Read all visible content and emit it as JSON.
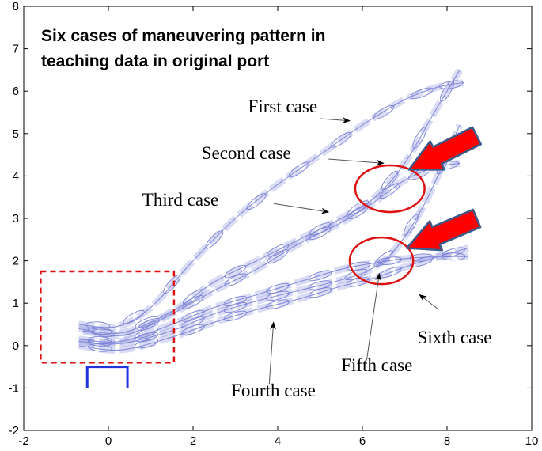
{
  "chart_data": {
    "type": "line",
    "title_lines": [
      "Six cases of maneuvering pattern in",
      "teaching data in original port"
    ],
    "xlabel": "",
    "ylabel": "",
    "xlim": [
      -2,
      10
    ],
    "ylim": [
      -2,
      8
    ],
    "x_ticks": [
      "-2",
      "0",
      "2",
      "4",
      "6",
      "8",
      "10"
    ],
    "y_ticks": [
      "-2",
      "-1",
      "0",
      "1",
      "2",
      "3",
      "4",
      "5",
      "6",
      "7",
      "8"
    ],
    "grid": false,
    "line_color": "#7b83d6",
    "series": [
      {
        "name": "First case",
        "x": [
          -0.7,
          0.2,
          1.0,
          2.0,
          3.0,
          4.0,
          5.0,
          6.0,
          7.0,
          7.8,
          8.4
        ],
        "y": [
          0.5,
          0.45,
          0.9,
          2.0,
          3.0,
          3.8,
          4.5,
          5.2,
          5.8,
          6.1,
          6.2
        ]
      },
      {
        "name": "Second case",
        "x": [
          -0.7,
          0.3,
          1.5,
          2.5,
          3.5,
          4.5,
          5.5,
          6.3,
          7.0,
          7.7,
          8.3
        ],
        "y": [
          0.4,
          0.3,
          0.8,
          1.5,
          2.0,
          2.5,
          3.0,
          3.5,
          4.3,
          5.5,
          6.5
        ]
      },
      {
        "name": "Third case",
        "x": [
          -0.6,
          0.4,
          1.5,
          2.5,
          3.5,
          4.5,
          5.5,
          6.3,
          7.0,
          7.7,
          8.3
        ],
        "y": [
          0.35,
          0.25,
          0.75,
          1.3,
          1.8,
          2.4,
          2.9,
          3.4,
          3.9,
          4.2,
          4.3
        ]
      },
      {
        "name": "Fourth case",
        "x": [
          -0.7,
          0.3,
          1.5,
          2.5,
          3.5,
          4.5,
          5.5,
          6.3,
          7.0,
          7.8,
          8.5
        ],
        "y": [
          0.15,
          0.1,
          0.5,
          0.9,
          1.2,
          1.5,
          1.8,
          1.95,
          2.05,
          2.1,
          2.1
        ]
      },
      {
        "name": "Fifth case",
        "x": [
          -0.7,
          0.3,
          1.5,
          2.5,
          3.5,
          4.5,
          5.5,
          6.2,
          6.8,
          7.5,
          8.3
        ],
        "y": [
          0.1,
          0.05,
          0.35,
          0.75,
          1.05,
          1.3,
          1.55,
          1.8,
          2.3,
          3.4,
          5.2
        ]
      },
      {
        "name": "Sixth case",
        "x": [
          -0.7,
          0.3,
          1.5,
          2.5,
          3.5,
          4.5,
          5.5,
          6.3,
          7.0,
          7.8,
          8.5
        ],
        "y": [
          0.0,
          -0.1,
          0.2,
          0.55,
          0.85,
          1.1,
          1.4,
          1.6,
          1.85,
          2.1,
          2.3
        ]
      }
    ],
    "annotations": [
      {
        "name": "First case",
        "text_x": 3.3,
        "text_y": 5.5,
        "arrow_from": [
          5.0,
          5.35
        ],
        "arrow_to": [
          5.7,
          5.3
        ]
      },
      {
        "name": "Second case",
        "text_x": 2.2,
        "text_y": 4.4,
        "arrow_from": [
          5.2,
          4.4
        ],
        "arrow_to": [
          6.5,
          4.3
        ]
      },
      {
        "name": "Third case",
        "text_x": 0.8,
        "text_y": 3.3,
        "arrow_from": [
          3.9,
          3.35
        ],
        "arrow_to": [
          5.2,
          3.15
        ]
      },
      {
        "name": "Fourth case",
        "text_x": 2.9,
        "text_y": -1.2,
        "arrow_from": [
          3.8,
          -0.9
        ],
        "arrow_to": [
          3.9,
          0.55
        ]
      },
      {
        "name": "Fifth case",
        "text_x": 5.5,
        "text_y": -0.6,
        "arrow_from": [
          6.1,
          -0.35
        ],
        "arrow_to": [
          6.4,
          1.7
        ]
      },
      {
        "name": "Sixth case",
        "text_x": 7.3,
        "text_y": 0.05,
        "arrow_from": [
          7.8,
          0.85
        ],
        "arrow_to": [
          7.35,
          1.2
        ]
      }
    ],
    "overlays": {
      "dashed_box": {
        "x": [
          -1.6,
          1.55
        ],
        "y": [
          -0.4,
          1.75
        ],
        "color": "#dd1111"
      },
      "berth": {
        "x": [
          -0.5,
          0.45
        ],
        "y_top": -0.5,
        "y_bottom": -1.0,
        "color": "#2233dd"
      },
      "ellipses": [
        {
          "cx": 6.65,
          "cy": 3.7,
          "rx": 0.82,
          "ry": 0.55,
          "color": "#dd1111"
        },
        {
          "cx": 6.45,
          "cy": 2.0,
          "rx": 0.75,
          "ry": 0.55,
          "color": "#dd1111"
        }
      ],
      "pointers": [
        {
          "tip": [
            7.1,
            4.15
          ],
          "base": [
            8.7,
            4.95
          ],
          "fill": "#ff0000",
          "stroke": "#3b5b8a"
        },
        {
          "tip": [
            7.05,
            2.3
          ],
          "base": [
            8.7,
            3.0
          ],
          "fill": "#ff0000",
          "stroke": "#3b5b8a"
        }
      ]
    }
  }
}
